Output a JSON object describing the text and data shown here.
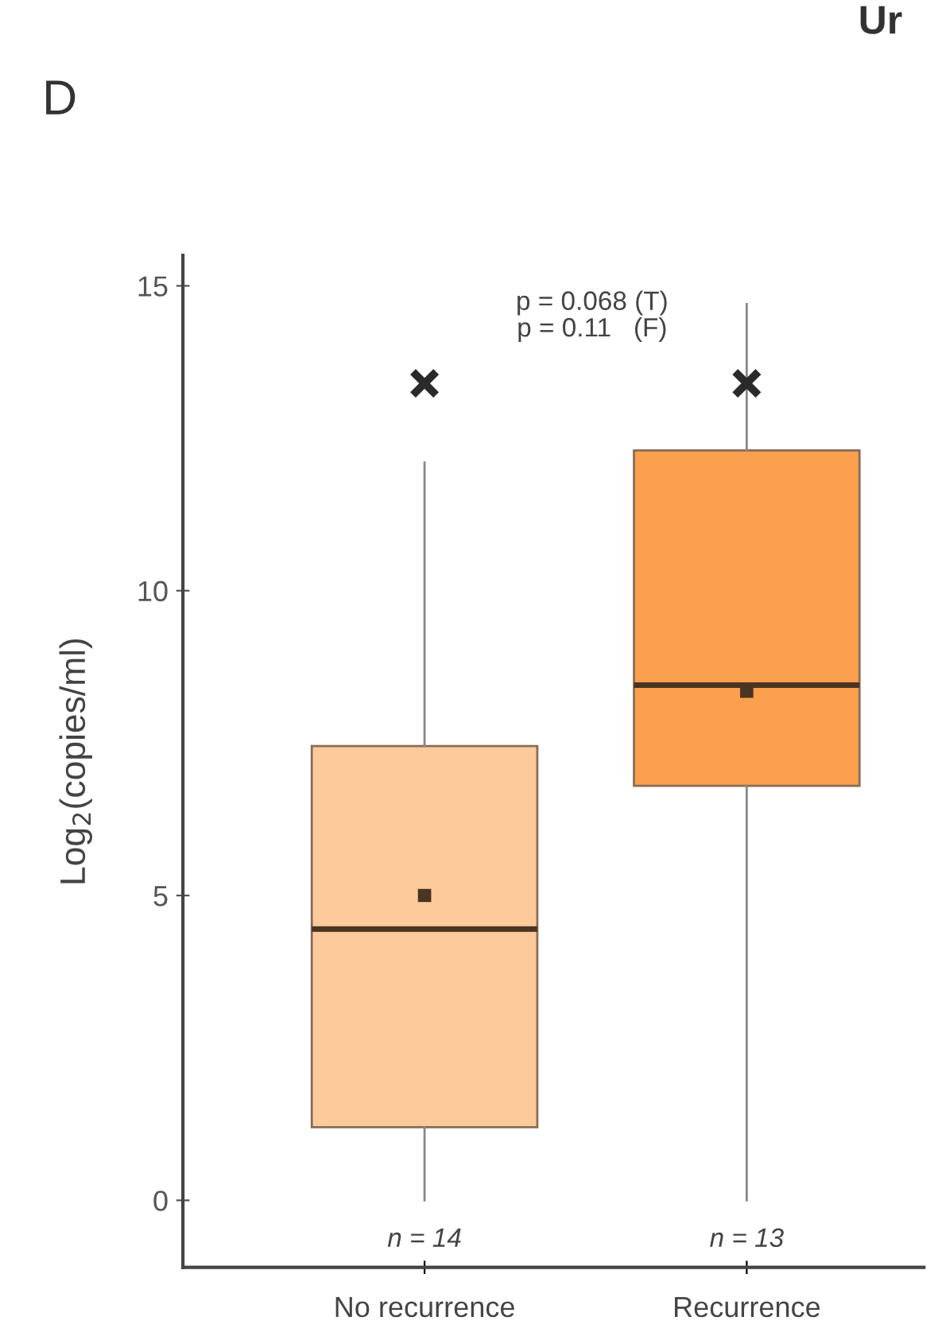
{
  "chart_data": {
    "type": "box",
    "ylabel": "Log$_{2}$(copies/ml)",
    "categories": [
      "No recurrence",
      "Recurrence"
    ],
    "series": [
      {
        "colors": [
          "#fdca9c",
          "#fba04e"
        ],
        "boxes": [
          {
            "low": 0,
            "q1": 1.2,
            "median": 4.45,
            "q3": 7.45,
            "high": 12.1,
            "mean": 5.0
          },
          {
            "low": 0,
            "q1": 6.8,
            "median": 8.45,
            "q3": 12.3,
            "high": 14.7,
            "mean": 8.35
          }
        ]
      },
      {
        "type": "scatter",
        "x": [
          "No recurrence",
          "Recurrence"
        ],
        "values": [
          13.4,
          13.4
        ],
        "color": "#2a2a2a",
        "marker": "cross"
      }
    ],
    "ylim": [
      -1.1,
      15.5
    ],
    "yticks": [
      0,
      5,
      10,
      15
    ],
    "grid": false,
    "annotations": [
      "D",
      "Ur",
      "p = 0.068 (T)\np = 0.11   (F)",
      "n = 14",
      "n = 13"
    ]
  }
}
